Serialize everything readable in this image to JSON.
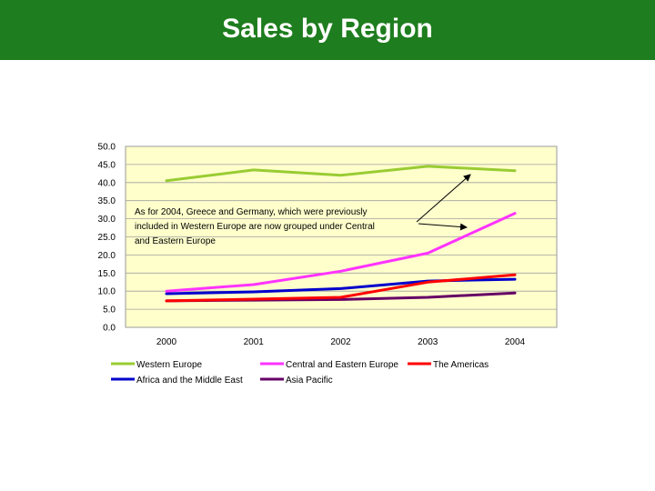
{
  "header": {
    "title": "Sales by Region",
    "bg_color": "#1e7d1e"
  },
  "chart_data": {
    "type": "line",
    "title": "",
    "xlabel": "",
    "ylabel": "",
    "x": [
      "2000",
      "2001",
      "2002",
      "2003",
      "2004"
    ],
    "ylim": [
      0,
      50
    ],
    "yticks": [
      "0.0",
      "5.0",
      "10.0",
      "15.0",
      "20.0",
      "25.0",
      "30.0",
      "35.0",
      "40.0",
      "45.0",
      "50.0"
    ],
    "grid": true,
    "plot_bg": "#ffffcc",
    "legend_position": "bottom",
    "series": [
      {
        "name": "Western Europe",
        "color": "#99cc33",
        "values": [
          40.5,
          43.5,
          42.0,
          44.5,
          43.3
        ]
      },
      {
        "name": "Central and Eastern Europe",
        "color": "#ff33ff",
        "values": [
          10.0,
          11.8,
          15.5,
          20.5,
          31.5
        ]
      },
      {
        "name": "The Americas",
        "color": "#ff0000",
        "values": [
          7.3,
          7.8,
          8.3,
          12.5,
          14.5
        ]
      },
      {
        "name": "Africa and the Middle East",
        "color": "#0000cc",
        "values": [
          9.3,
          9.8,
          10.7,
          12.8,
          13.3
        ]
      },
      {
        "name": "Asia Pacific",
        "color": "#660066",
        "values": [
          7.3,
          7.5,
          7.7,
          8.3,
          9.5
        ]
      }
    ],
    "annotation": {
      "lines": [
        "As for 2004, Greece and Germany, which were previously",
        "included in Western Europe are now grouped under Central",
        "and Eastern Europe"
      ]
    }
  }
}
